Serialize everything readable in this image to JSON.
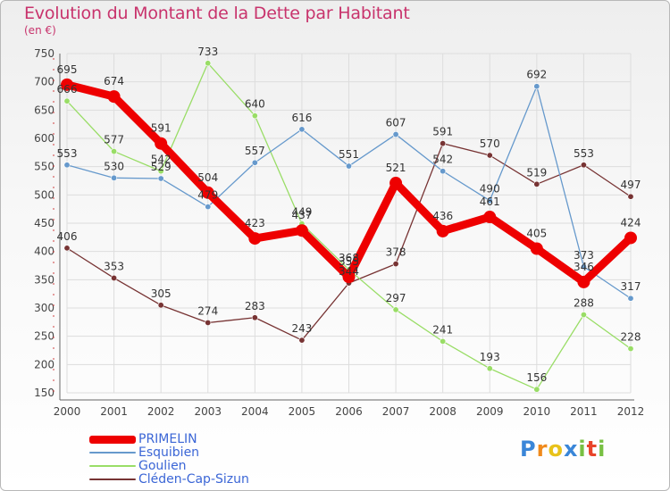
{
  "header": {
    "title": "Evolution du Montant de la Dette par Habitant",
    "unit": "(en €)"
  },
  "chart_data": {
    "type": "line",
    "title": "Evolution du Montant de la Dette par Habitant",
    "ylabel": "(en €)",
    "xlabel": "",
    "categories": [
      "2000",
      "2001",
      "2002",
      "2003",
      "2004",
      "2005",
      "2006",
      "2007",
      "2008",
      "2009",
      "2010",
      "2011",
      "2012"
    ],
    "ylim": [
      150,
      750
    ],
    "yticks": [
      150,
      200,
      250,
      300,
      350,
      400,
      450,
      500,
      550,
      600,
      650,
      700,
      750
    ],
    "grid": true,
    "series": [
      {
        "name": "PRIMELIN",
        "color": "#ee0000",
        "values": [
          695,
          674,
          591,
          504,
          423,
          437,
          355,
          521,
          436,
          461,
          405,
          346,
          424
        ]
      },
      {
        "name": "Esquibien",
        "color": "#6699cc",
        "values": [
          553,
          530,
          529,
          479,
          557,
          616,
          551,
          607,
          542,
          490,
          692,
          373,
          317
        ]
      },
      {
        "name": "Goulien",
        "color": "#99dd66",
        "values": [
          666,
          577,
          542,
          733,
          640,
          449,
          368,
          297,
          241,
          193,
          156,
          288,
          228
        ]
      },
      {
        "name": "Cléden-Cap-Sizun",
        "color": "#773333",
        "values": [
          406,
          353,
          305,
          274,
          283,
          243,
          344,
          378,
          591,
          570,
          519,
          553,
          497
        ]
      }
    ],
    "legend": "bottom-left"
  },
  "logo": {
    "text": "Proxiti",
    "letters": [
      {
        "ch": "P",
        "color": "#3a86d8"
      },
      {
        "ch": "r",
        "color": "#f08a1c"
      },
      {
        "ch": "o",
        "color": "#e8c21a"
      },
      {
        "ch": "x",
        "color": "#3a86d8"
      },
      {
        "ch": "i",
        "color": "#78c043"
      },
      {
        "ch": "t",
        "color": "#e8442a"
      },
      {
        "ch": "i",
        "color": "#78c043"
      }
    ]
  }
}
